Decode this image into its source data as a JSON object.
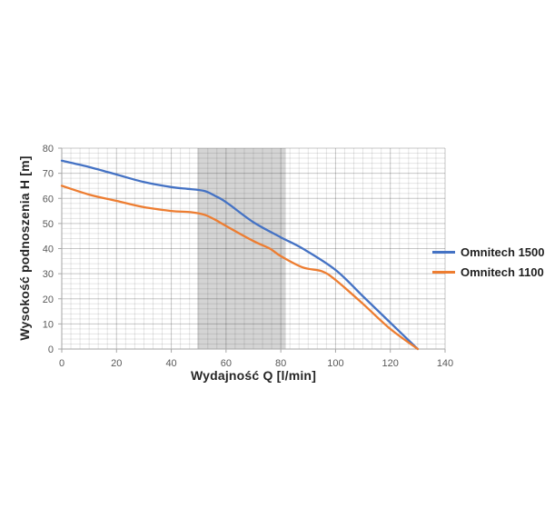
{
  "chart_data": {
    "type": "line",
    "title": "",
    "xlabel": "Wydajność Q [l/min]",
    "ylabel": "Wysokość podnoszenia H [m]",
    "xlim": [
      0,
      140
    ],
    "ylim": [
      0,
      80
    ],
    "x_ticks": [
      0,
      20,
      40,
      60,
      80,
      100,
      120,
      140
    ],
    "y_ticks": [
      0,
      10,
      20,
      30,
      40,
      50,
      60,
      70,
      80
    ],
    "x_major": 20,
    "x_minor": 3.3333,
    "y_major": 10,
    "y_minor": 2,
    "grid": true,
    "legend_position": "right",
    "band": {
      "x_from": 49.5,
      "x_to": 81.8,
      "color": "#d4d4d4",
      "meaning": "shaded operating range"
    },
    "colors": {
      "grid_minor": "rgba(0,0,0,0.10)",
      "grid_major": "rgba(0,0,0,0.22)",
      "axis": "#a6a6a6",
      "tick_label": "#595959",
      "title_text": "#262626",
      "legend_text": "#1f1f1f"
    },
    "series": [
      {
        "name": "Omnitech 1500",
        "color": "#4472c4",
        "points": [
          [
            0,
            75
          ],
          [
            10,
            72.5
          ],
          [
            20,
            69.5
          ],
          [
            30,
            66.5
          ],
          [
            40,
            64.5
          ],
          [
            46,
            63.8
          ],
          [
            52,
            63
          ],
          [
            56,
            61
          ],
          [
            60,
            58.5
          ],
          [
            70,
            50.5
          ],
          [
            80,
            44.5
          ],
          [
            88,
            40
          ],
          [
            100,
            31.5
          ],
          [
            110,
            21
          ],
          [
            120,
            10.5
          ],
          [
            130,
            0
          ]
        ]
      },
      {
        "name": "Omnitech 1100",
        "color": "#ed7d31",
        "points": [
          [
            0,
            65
          ],
          [
            10,
            61.5
          ],
          [
            20,
            59
          ],
          [
            30,
            56.5
          ],
          [
            40,
            55
          ],
          [
            47,
            54.5
          ],
          [
            52,
            53.5
          ],
          [
            56,
            51.5
          ],
          [
            60,
            49
          ],
          [
            70,
            43
          ],
          [
            76,
            40
          ],
          [
            80,
            37
          ],
          [
            88,
            32.5
          ],
          [
            95,
            31
          ],
          [
            100,
            27.5
          ],
          [
            110,
            18
          ],
          [
            120,
            8
          ],
          [
            130,
            0
          ]
        ]
      }
    ]
  }
}
